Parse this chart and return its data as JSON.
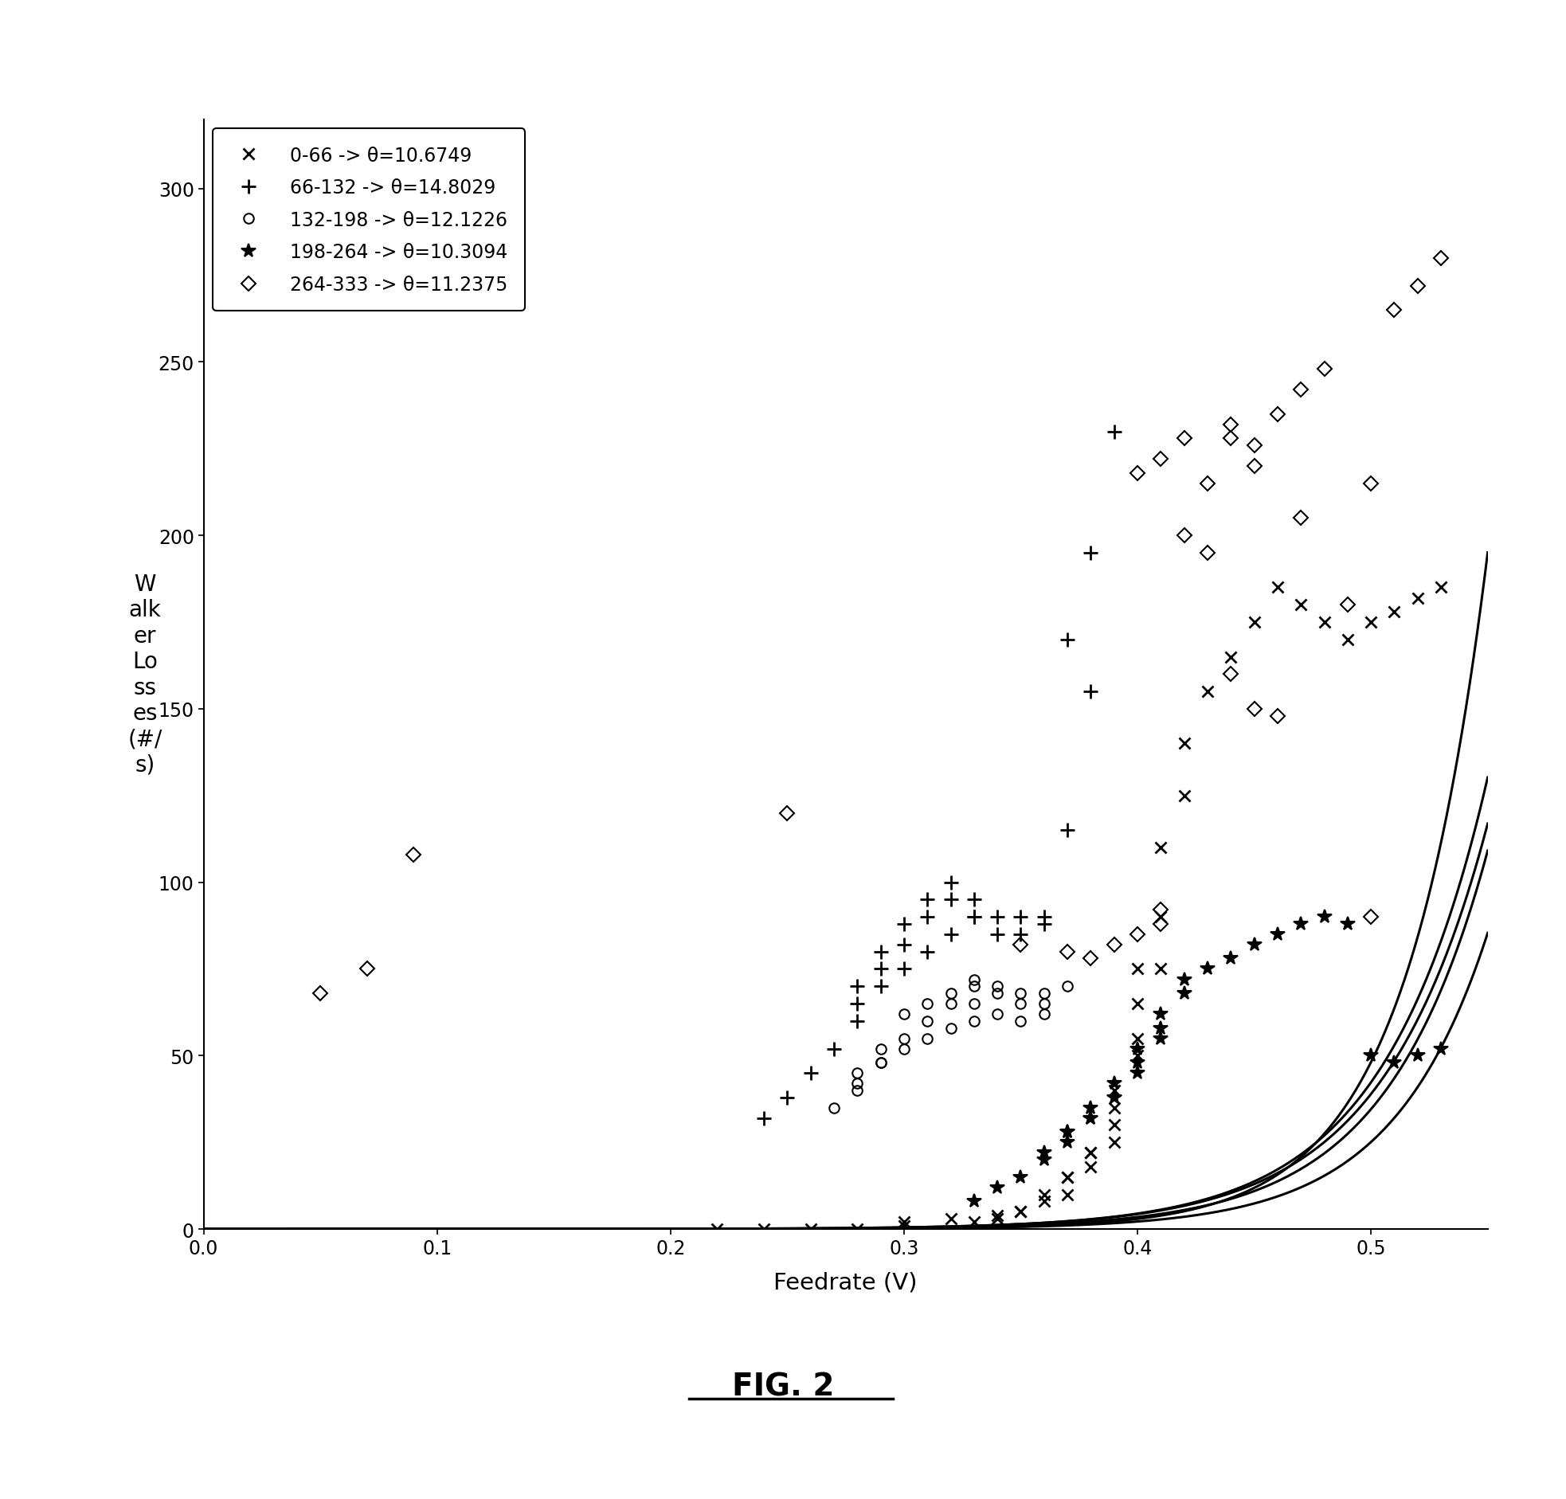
{
  "series": [
    {
      "label": "0-66 -> θ=10.6749",
      "marker": "x",
      "theta": 10.6749
    },
    {
      "label": "66-132 -> θ=14.8029",
      "marker": "+",
      "theta": 14.8029
    },
    {
      "label": "132-198 -> θ=12.1226",
      "marker": "o",
      "theta": 12.1226
    },
    {
      "label": "198-264 -> θ=10.3094",
      "marker": "*",
      "theta": 10.3094
    },
    {
      "label": "264-333 -> θ=11.2375",
      "marker": "D",
      "theta": 11.2375
    }
  ],
  "xlabel": "Feedrate (V)",
  "ylabel": "W\nalk\ner\nLo\nss\nes\n(#/\ns)",
  "xlim": [
    0,
    0.55
  ],
  "ylim": [
    0,
    320
  ],
  "yticks": [
    0,
    50,
    100,
    150,
    200,
    250,
    300
  ],
  "xticks": [
    0,
    0.1,
    0.2,
    0.3,
    0.4,
    0.5
  ],
  "fig_caption": "FIG. 2",
  "line_color": "black",
  "line_width": 2.2,
  "background_color": "white",
  "curves": [
    {
      "A": 0.00055,
      "B": 22.5
    },
    {
      "A": 4e-05,
      "B": 28.0
    },
    {
      "A": 0.00012,
      "B": 24.5
    },
    {
      "A": 0.00065,
      "B": 22.0
    },
    {
      "A": 0.00035,
      "B": 23.0
    }
  ],
  "scatter": [
    {
      "x": [
        0.3,
        0.32,
        0.34,
        0.35,
        0.36,
        0.37,
        0.37,
        0.38,
        0.38,
        0.39,
        0.39,
        0.39,
        0.4,
        0.4,
        0.4,
        0.41,
        0.41,
        0.42,
        0.42,
        0.43,
        0.44,
        0.45,
        0.46,
        0.47,
        0.48,
        0.49,
        0.5,
        0.51,
        0.52,
        0.53,
        0.33,
        0.34,
        0.35,
        0.36,
        0.37,
        0.38,
        0.39,
        0.4,
        0.41,
        0.22,
        0.24,
        0.26,
        0.28,
        0.3
      ],
      "y": [
        2,
        3,
        4,
        5,
        8,
        10,
        15,
        18,
        22,
        25,
        30,
        40,
        55,
        65,
        75,
        90,
        110,
        125,
        140,
        155,
        165,
        175,
        185,
        180,
        175,
        170,
        175,
        178,
        182,
        185,
        2,
        3,
        5,
        10,
        15,
        22,
        35,
        50,
        75,
        0,
        0,
        0,
        0,
        1
      ]
    },
    {
      "x": [
        0.24,
        0.25,
        0.26,
        0.27,
        0.28,
        0.28,
        0.29,
        0.29,
        0.3,
        0.3,
        0.31,
        0.31,
        0.32,
        0.32,
        0.33,
        0.33,
        0.34,
        0.34,
        0.35,
        0.35,
        0.36,
        0.36,
        0.37,
        0.38,
        0.28,
        0.29,
        0.3,
        0.31,
        0.32,
        0.33,
        0.37,
        0.38,
        0.39
      ],
      "y": [
        32,
        38,
        45,
        52,
        60,
        70,
        75,
        80,
        82,
        88,
        90,
        95,
        95,
        100,
        95,
        90,
        85,
        90,
        85,
        90,
        88,
        90,
        115,
        155,
        65,
        70,
        75,
        80,
        85,
        90,
        170,
        195,
        230
      ]
    },
    {
      "x": [
        0.27,
        0.28,
        0.28,
        0.29,
        0.29,
        0.3,
        0.3,
        0.31,
        0.31,
        0.32,
        0.32,
        0.33,
        0.33,
        0.33,
        0.34,
        0.34,
        0.35,
        0.35,
        0.36,
        0.36,
        0.37,
        0.28,
        0.29,
        0.3,
        0.31,
        0.32,
        0.33,
        0.34,
        0.35,
        0.36
      ],
      "y": [
        35,
        40,
        45,
        48,
        52,
        55,
        62,
        60,
        65,
        65,
        68,
        65,
        70,
        72,
        70,
        68,
        68,
        65,
        65,
        68,
        70,
        42,
        48,
        52,
        55,
        58,
        60,
        62,
        60,
        62
      ]
    },
    {
      "x": [
        0.33,
        0.34,
        0.35,
        0.36,
        0.37,
        0.37,
        0.38,
        0.38,
        0.39,
        0.39,
        0.4,
        0.4,
        0.41,
        0.41,
        0.42,
        0.42,
        0.43,
        0.44,
        0.45,
        0.46,
        0.47,
        0.48,
        0.49,
        0.5,
        0.51,
        0.52,
        0.53,
        0.36,
        0.37,
        0.38,
        0.39,
        0.4,
        0.41
      ],
      "y": [
        8,
        12,
        15,
        20,
        25,
        28,
        32,
        35,
        38,
        42,
        48,
        52,
        58,
        62,
        68,
        72,
        75,
        78,
        82,
        85,
        88,
        90,
        88,
        50,
        48,
        50,
        52,
        22,
        28,
        32,
        38,
        45,
        55
      ]
    },
    {
      "x": [
        0.05,
        0.07,
        0.09,
        0.25,
        0.35,
        0.37,
        0.38,
        0.39,
        0.4,
        0.41,
        0.41,
        0.42,
        0.43,
        0.44,
        0.44,
        0.45,
        0.45,
        0.46,
        0.47,
        0.48,
        0.49,
        0.5,
        0.51,
        0.52,
        0.53,
        0.4,
        0.41,
        0.42,
        0.43,
        0.44,
        0.45,
        0.46,
        0.47,
        0.5
      ],
      "y": [
        68,
        75,
        108,
        120,
        82,
        80,
        78,
        82,
        85,
        88,
        92,
        200,
        215,
        228,
        232,
        220,
        226,
        235,
        242,
        248,
        180,
        215,
        265,
        272,
        280,
        218,
        222,
        228,
        195,
        160,
        150,
        148,
        205,
        90
      ]
    }
  ],
  "marker_sizes": [
    10,
    13,
    9,
    13,
    9
  ],
  "marker_ews": [
    2.0,
    2.0,
    1.5,
    1.5,
    1.5
  ],
  "open_markers": [
    "o",
    "D"
  ]
}
